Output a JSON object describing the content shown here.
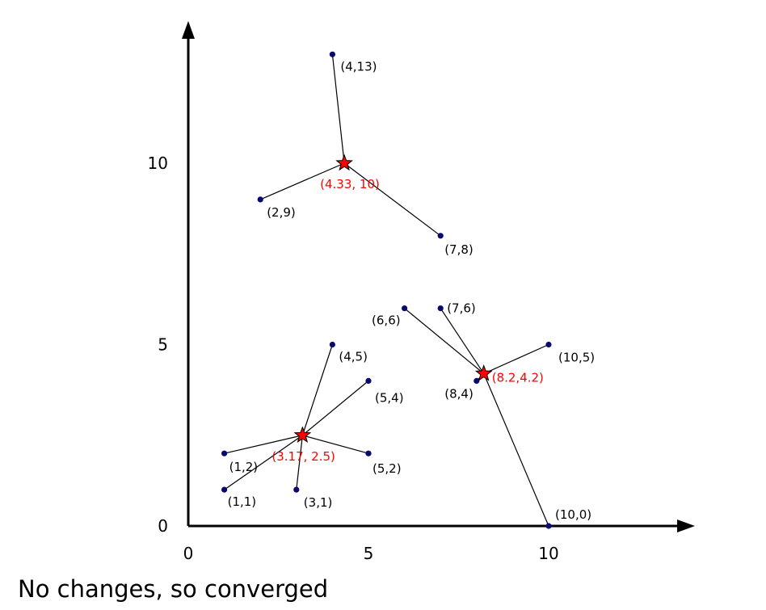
{
  "chart_data": {
    "type": "scatter",
    "title": "",
    "xlabel": "",
    "ylabel": "",
    "xticks": [
      {
        "value": 0,
        "label": "0"
      },
      {
        "value": 5,
        "label": "5"
      },
      {
        "value": 10,
        "label": "10"
      }
    ],
    "yticks": [
      {
        "value": 0,
        "label": "0"
      },
      {
        "value": 5,
        "label": "5"
      },
      {
        "value": 10,
        "label": "10"
      }
    ],
    "points": [
      {
        "x": 4,
        "y": 13,
        "label": "(4,13)",
        "cluster": 0
      },
      {
        "x": 2,
        "y": 9,
        "label": "(2,9)",
        "cluster": 0
      },
      {
        "x": 7,
        "y": 8,
        "label": "(7,8)",
        "cluster": 0
      },
      {
        "x": 6,
        "y": 6,
        "label": "(6,6)",
        "cluster": 1
      },
      {
        "x": 7,
        "y": 6,
        "label": "(7,6)",
        "cluster": 1
      },
      {
        "x": 10,
        "y": 5,
        "label": "(10,5)",
        "cluster": 1
      },
      {
        "x": 8,
        "y": 4,
        "label": "(8,4)",
        "cluster": 1
      },
      {
        "x": 10,
        "y": 0,
        "label": "(10,0)",
        "cluster": 1
      },
      {
        "x": 4,
        "y": 5,
        "label": "(4,5)",
        "cluster": 2
      },
      {
        "x": 5,
        "y": 4,
        "label": "(5,4)",
        "cluster": 2
      },
      {
        "x": 1,
        "y": 2,
        "label": "(1,2)",
        "cluster": 2
      },
      {
        "x": 5,
        "y": 2,
        "label": "(5,2)",
        "cluster": 2
      },
      {
        "x": 1,
        "y": 1,
        "label": "(1,1)",
        "cluster": 2
      },
      {
        "x": 3,
        "y": 1,
        "label": "(3,1)",
        "cluster": 2
      }
    ],
    "centroids": [
      {
        "x": 4.33,
        "y": 10,
        "label": "(4.33, 10)"
      },
      {
        "x": 8.2,
        "y": 4.2,
        "label": "(8.2,4.2)"
      },
      {
        "x": 3.17,
        "y": 2.5,
        "label": "(3.17, 2.5)"
      }
    ],
    "colors": {
      "point": "#0a0a6e",
      "centroid": "#ff0000",
      "centroid_label": "#ff0000",
      "line": "#000000",
      "axis": "#000000"
    }
  },
  "caption": "No changes, so converged"
}
